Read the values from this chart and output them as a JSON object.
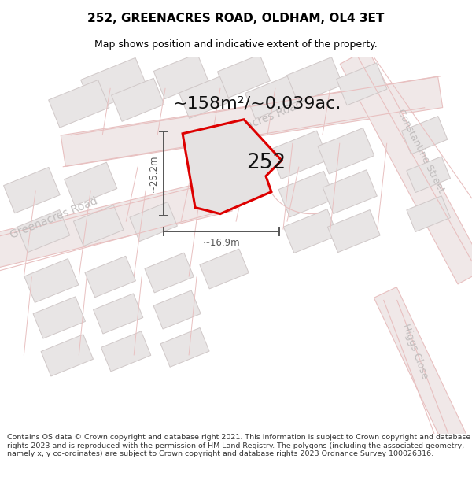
{
  "title": "252, GREENACRES ROAD, OLDHAM, OL4 3ET",
  "subtitle": "Map shows position and indicative extent of the property.",
  "area_text": "~158m²/~0.039ac.",
  "label_252": "252",
  "dim_height": "~25.2m",
  "dim_width": "~16.9m",
  "footer": "Contains OS data © Crown copyright and database right 2021. This information is subject to Crown copyright and database rights 2023 and is reproduced with the permission of HM Land Registry. The polygons (including the associated geometry, namely x, y co-ordinates) are subject to Crown copyright and database rights 2023 Ordnance Survey 100026316.",
  "map_bg": "#f8f7f7",
  "road_fill": "#f0e8e8",
  "road_edge": "#e8c0c0",
  "building_fill": "#e8e5e5",
  "building_edge": "#d0c8c8",
  "prop_fill": "#e5e2e2",
  "prop_edge": "#dd0000",
  "street_color": "#c0bcbc",
  "dim_color": "#555555",
  "title_fontsize": 11,
  "subtitle_fontsize": 9,
  "footer_fontsize": 6.8
}
